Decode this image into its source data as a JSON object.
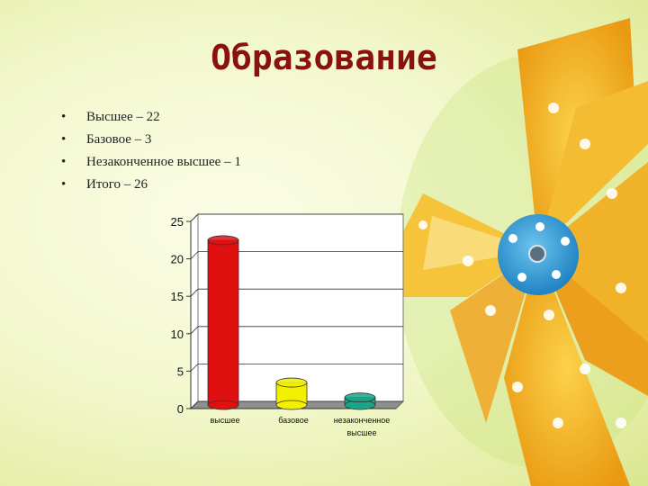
{
  "slide": {
    "title": "Образование",
    "bullet_marker": "•",
    "bullets": [
      "Высшее – 22",
      "Базовое – 3",
      "Незаконченное высшее – 1",
      "Итого – 26"
    ]
  },
  "colors": {
    "title": "#8b1010",
    "bar_red": "#e01010",
    "bar_yellow": "#f2f000",
    "bar_teal": "#1aa58a",
    "pinwheel_yellow": "#f5b52a",
    "pinwheel_center": "#3aa0d8"
  },
  "chart_data": {
    "type": "bar",
    "categories": [
      "высшее",
      "базовое",
      "незаконченное высшее"
    ],
    "values": [
      22,
      3,
      1
    ],
    "ylim": [
      0,
      25
    ],
    "yticks": [
      "0",
      "5",
      "10",
      "15",
      "20",
      "25"
    ],
    "grid": true,
    "bar_style": "3d-cylinder",
    "title": "",
    "xlabel": "",
    "ylabel": ""
  }
}
